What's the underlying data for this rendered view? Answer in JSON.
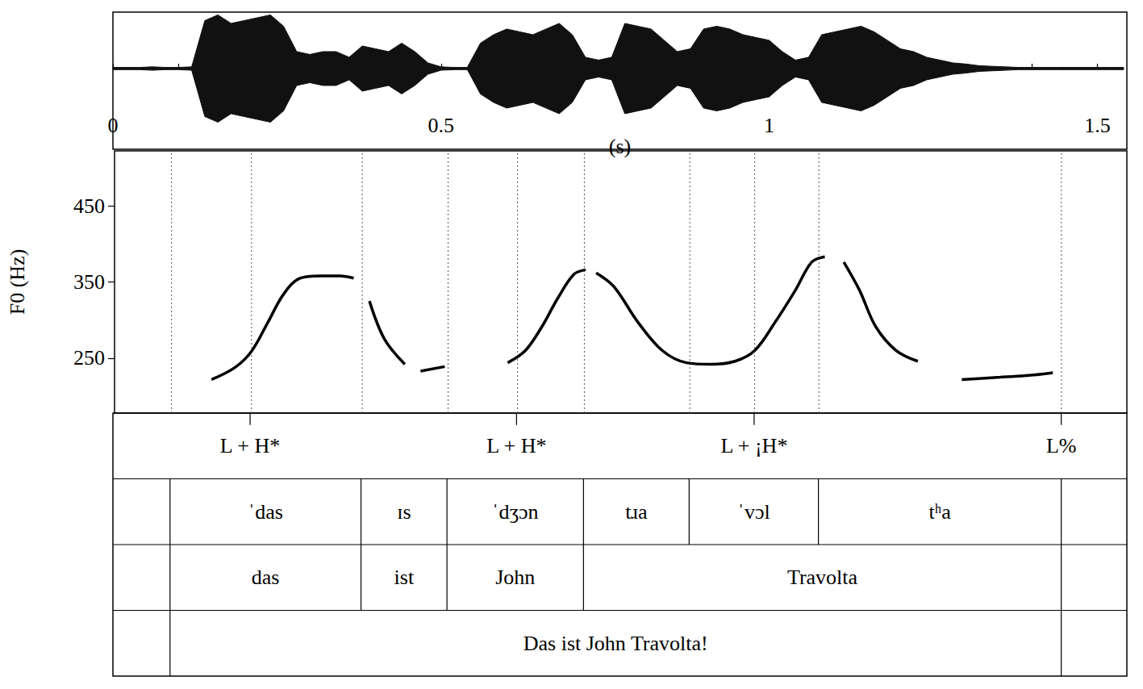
{
  "chart_data": [
    {
      "type": "waveform",
      "x": [
        0.0,
        0.02,
        0.04,
        0.06,
        0.08,
        0.1,
        0.12,
        0.14,
        0.16,
        0.18,
        0.2,
        0.22,
        0.24,
        0.26,
        0.28,
        0.3,
        0.32,
        0.34,
        0.36,
        0.38,
        0.4,
        0.42,
        0.44,
        0.46,
        0.48,
        0.5,
        0.52,
        0.54,
        0.56,
        0.58,
        0.6,
        0.62,
        0.64,
        0.66,
        0.68,
        0.7,
        0.72,
        0.74,
        0.76,
        0.78,
        0.8,
        0.82,
        0.84,
        0.86,
        0.88,
        0.9,
        0.92,
        0.94,
        0.96,
        0.98,
        1.0,
        1.02,
        1.04,
        1.06,
        1.08,
        1.1,
        1.12,
        1.14,
        1.16,
        1.18,
        1.2,
        1.22,
        1.24,
        1.26,
        1.28,
        1.3,
        1.32,
        1.34,
        1.36,
        1.38,
        1.4,
        1.42,
        1.44,
        1.46,
        1.48,
        1.5,
        1.52,
        1.54
      ],
      "values": [
        0.02,
        0.02,
        0.02,
        0.03,
        0.02,
        0.02,
        0.03,
        0.85,
        0.95,
        0.8,
        0.85,
        0.9,
        0.95,
        0.75,
        0.3,
        0.25,
        0.3,
        0.3,
        0.2,
        0.4,
        0.35,
        0.3,
        0.45,
        0.3,
        0.1,
        0.03,
        0.02,
        0.02,
        0.45,
        0.6,
        0.7,
        0.65,
        0.6,
        0.7,
        0.8,
        0.6,
        0.2,
        0.15,
        0.2,
        0.8,
        0.75,
        0.7,
        0.5,
        0.3,
        0.35,
        0.7,
        0.75,
        0.7,
        0.6,
        0.55,
        0.5,
        0.3,
        0.15,
        0.2,
        0.6,
        0.65,
        0.7,
        0.75,
        0.65,
        0.5,
        0.35,
        0.3,
        0.2,
        0.15,
        0.1,
        0.08,
        0.05,
        0.04,
        0.03,
        0.02,
        0.02,
        0.02,
        0.02,
        0.02,
        0.02,
        0.02,
        0.02,
        0.02
      ],
      "xlim": [
        0,
        1.545
      ],
      "ylim": [
        -1.43,
        1
      ],
      "xticks": [
        0,
        0.5,
        1,
        1.5
      ],
      "xminor_ticks": [
        0.1,
        0.2,
        0.3,
        0.4,
        0.6,
        0.7,
        0.8,
        0.9,
        1.1,
        1.2,
        1.3,
        1.4
      ],
      "xlabel": "(s)",
      "tick_labels": "x",
      "color": "#111111"
    },
    {
      "type": "line",
      "x": [
        0.148,
        0.184,
        0.209,
        0.234,
        0.258,
        0.283,
        0.314,
        0.344,
        0.365,
        0.377,
        0.389,
        0.412,
        0.443,
        0.455,
        0.467,
        0.504,
        0.55,
        0.6,
        0.627,
        0.652,
        0.676,
        0.701,
        0.719,
        0.727,
        0.735,
        0.762,
        0.799,
        0.836,
        0.873,
        0.91,
        0.947,
        0.977,
        1.008,
        1.039,
        1.064,
        1.084,
        1.098,
        1.113,
        1.137,
        1.162,
        1.193,
        1.226,
        1.26,
        1.293,
        1.352,
        1.402,
        1.432
      ],
      "values": [
        222,
        238,
        259,
        297,
        334,
        355,
        358,
        358,
        355,
        null,
        325,
        275,
        242,
        null,
        233,
        239,
        null,
        244,
        260,
        291,
        328,
        360,
        366,
        null,
        362,
        344,
        297,
        260,
        244,
        242,
        246,
        260,
        297,
        339,
        376,
        383,
        null,
        376,
        339,
        291,
        260,
        246,
        null,
        222,
        225,
        228,
        231
      ],
      "xlim": [
        0,
        1.545
      ],
      "ylim": [
        178,
        522
      ],
      "yticks": [
        250,
        350,
        450
      ],
      "ylabel": "F0 (Hz)",
      "tick_labels": "y",
      "grid": false,
      "color": "#000000"
    }
  ],
  "tiers": [
    {
      "kind": "point",
      "points": [
        {
          "time": 0.209,
          "label": "L + H*"
        },
        {
          "time": 0.615,
          "label": "L + H*"
        },
        {
          "time": 0.977,
          "label": "L + ¡H*"
        },
        {
          "time": 1.445,
          "label": "L%"
        }
      ]
    },
    {
      "kind": "interval",
      "boundaries": [
        0.087,
        0.378,
        0.509,
        0.717,
        0.878,
        1.075,
        1.445
      ],
      "labels": [
        "ˈdas",
        "ɪs",
        "ˈdʒɔn",
        "tɹa",
        "ˈvɔl",
        "tʰa"
      ]
    },
    {
      "kind": "interval",
      "boundaries": [
        0.087,
        0.378,
        0.509,
        0.717,
        1.445
      ],
      "labels": [
        "das",
        "ist",
        "John",
        "Travolta"
      ]
    },
    {
      "kind": "interval",
      "boundaries": [
        0.087,
        1.445
      ],
      "labels": [
        "Das ist John Travolta!"
      ]
    }
  ]
}
